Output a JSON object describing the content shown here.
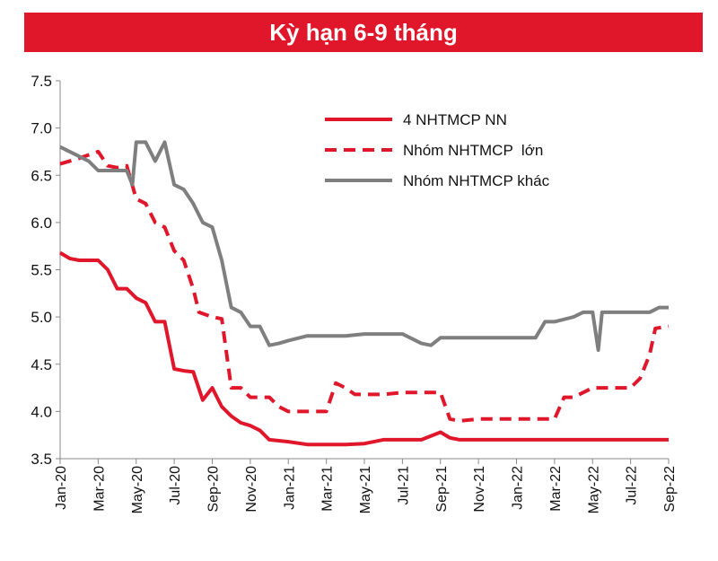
{
  "chart_data": {
    "type": "line",
    "title": "Kỳ hạn 6-9 tháng",
    "x_ticks": [
      "Jan-20",
      "Mar-20",
      "May-20",
      "Jul-20",
      "Sep-20",
      "Nov-20",
      "Jan-21",
      "Mar-21",
      "May-21",
      "Jul-21",
      "Sep-21",
      "Nov-21",
      "Jan-22",
      "Mar-22",
      "May-22",
      "Jul-22",
      "Sep-22"
    ],
    "x_range": [
      0,
      32
    ],
    "ylim": [
      3.5,
      7.5
    ],
    "y_ticks": [
      "3.5",
      "4.0",
      "4.5",
      "5.0",
      "5.5",
      "6.0",
      "6.5",
      "7.0",
      "7.5"
    ],
    "grid": false,
    "legend_position": "top-right",
    "x_unit": "months since Jan-20",
    "series": [
      {
        "name": "4 NHTMCP NN",
        "color": "#e0162b",
        "style": "solid",
        "points": [
          [
            0,
            5.68
          ],
          [
            0.5,
            5.62
          ],
          [
            1,
            5.6
          ],
          [
            2,
            5.6
          ],
          [
            2.5,
            5.5
          ],
          [
            3,
            5.3
          ],
          [
            3.5,
            5.3
          ],
          [
            4,
            5.2
          ],
          [
            4.5,
            5.15
          ],
          [
            5,
            4.95
          ],
          [
            5.5,
            4.95
          ],
          [
            6,
            4.45
          ],
          [
            6.5,
            4.43
          ],
          [
            7,
            4.42
          ],
          [
            7.5,
            4.12
          ],
          [
            8,
            4.25
          ],
          [
            8.5,
            4.05
          ],
          [
            9,
            3.95
          ],
          [
            9.5,
            3.88
          ],
          [
            10,
            3.85
          ],
          [
            10.5,
            3.8
          ],
          [
            11,
            3.7
          ],
          [
            12,
            3.68
          ],
          [
            13,
            3.65
          ],
          [
            14,
            3.65
          ],
          [
            15,
            3.65
          ],
          [
            16,
            3.66
          ],
          [
            17,
            3.7
          ],
          [
            18,
            3.7
          ],
          [
            19,
            3.7
          ],
          [
            20,
            3.78
          ],
          [
            20.5,
            3.72
          ],
          [
            21,
            3.7
          ],
          [
            22,
            3.7
          ],
          [
            24,
            3.7
          ],
          [
            26,
            3.7
          ],
          [
            28,
            3.7
          ],
          [
            30,
            3.7
          ],
          [
            32,
            3.7
          ]
        ]
      },
      {
        "name": "Nhóm NHTMCP  lớn",
        "color": "#e0162b",
        "style": "dashed",
        "points": [
          [
            0,
            6.62
          ],
          [
            1,
            6.68
          ],
          [
            2,
            6.75
          ],
          [
            2.5,
            6.6
          ],
          [
            3,
            6.58
          ],
          [
            3.5,
            6.6
          ],
          [
            4,
            6.25
          ],
          [
            4.5,
            6.2
          ],
          [
            5,
            6.0
          ],
          [
            5.5,
            5.95
          ],
          [
            6,
            5.7
          ],
          [
            6.5,
            5.6
          ],
          [
            7,
            5.3
          ],
          [
            7.3,
            5.05
          ],
          [
            8,
            5.0
          ],
          [
            8.5,
            4.98
          ],
          [
            9,
            4.25
          ],
          [
            9.5,
            4.25
          ],
          [
            10,
            4.15
          ],
          [
            11,
            4.15
          ],
          [
            11.5,
            4.05
          ],
          [
            12,
            4.0
          ],
          [
            13,
            4.0
          ],
          [
            14,
            4.0
          ],
          [
            14.5,
            4.3
          ],
          [
            15,
            4.25
          ],
          [
            15.5,
            4.18
          ],
          [
            16,
            4.18
          ],
          [
            17,
            4.18
          ],
          [
            18,
            4.2
          ],
          [
            19,
            4.2
          ],
          [
            20,
            4.2
          ],
          [
            20.5,
            3.92
          ],
          [
            21,
            3.9
          ],
          [
            22,
            3.92
          ],
          [
            23,
            3.92
          ],
          [
            24,
            3.92
          ],
          [
            25,
            3.92
          ],
          [
            26,
            3.92
          ],
          [
            26.5,
            4.15
          ],
          [
            27,
            4.15
          ],
          [
            28,
            4.25
          ],
          [
            29,
            4.25
          ],
          [
            30,
            4.25
          ],
          [
            30.5,
            4.35
          ],
          [
            31,
            4.6
          ],
          [
            31.3,
            4.88
          ],
          [
            32,
            4.9
          ]
        ]
      },
      {
        "name": "Nhóm NHTMCP khác",
        "color": "#7f7f7f",
        "style": "solid",
        "points": [
          [
            0,
            6.8
          ],
          [
            0.5,
            6.75
          ],
          [
            1,
            6.7
          ],
          [
            1.5,
            6.65
          ],
          [
            2,
            6.55
          ],
          [
            3,
            6.55
          ],
          [
            3.5,
            6.55
          ],
          [
            3.8,
            6.4
          ],
          [
            4,
            6.85
          ],
          [
            4.5,
            6.85
          ],
          [
            5,
            6.65
          ],
          [
            5.5,
            6.85
          ],
          [
            6,
            6.4
          ],
          [
            6.5,
            6.35
          ],
          [
            7,
            6.2
          ],
          [
            7.5,
            6.0
          ],
          [
            8,
            5.95
          ],
          [
            8.5,
            5.6
          ],
          [
            9,
            5.1
          ],
          [
            9.5,
            5.05
          ],
          [
            10,
            4.9
          ],
          [
            10.5,
            4.9
          ],
          [
            11,
            4.7
          ],
          [
            11.5,
            4.72
          ],
          [
            12,
            4.75
          ],
          [
            13,
            4.8
          ],
          [
            14,
            4.8
          ],
          [
            15,
            4.8
          ],
          [
            16,
            4.82
          ],
          [
            17,
            4.82
          ],
          [
            18,
            4.82
          ],
          [
            19,
            4.72
          ],
          [
            19.5,
            4.7
          ],
          [
            20,
            4.78
          ],
          [
            21,
            4.78
          ],
          [
            22,
            4.78
          ],
          [
            23,
            4.78
          ],
          [
            24,
            4.78
          ],
          [
            25,
            4.78
          ],
          [
            25.5,
            4.95
          ],
          [
            26,
            4.95
          ],
          [
            27,
            5.0
          ],
          [
            27.5,
            5.05
          ],
          [
            28,
            5.05
          ],
          [
            28.3,
            4.65
          ],
          [
            28.5,
            5.05
          ],
          [
            29,
            5.05
          ],
          [
            30,
            5.05
          ],
          [
            31,
            5.05
          ],
          [
            31.5,
            5.1
          ],
          [
            32,
            5.1
          ]
        ]
      }
    ]
  }
}
